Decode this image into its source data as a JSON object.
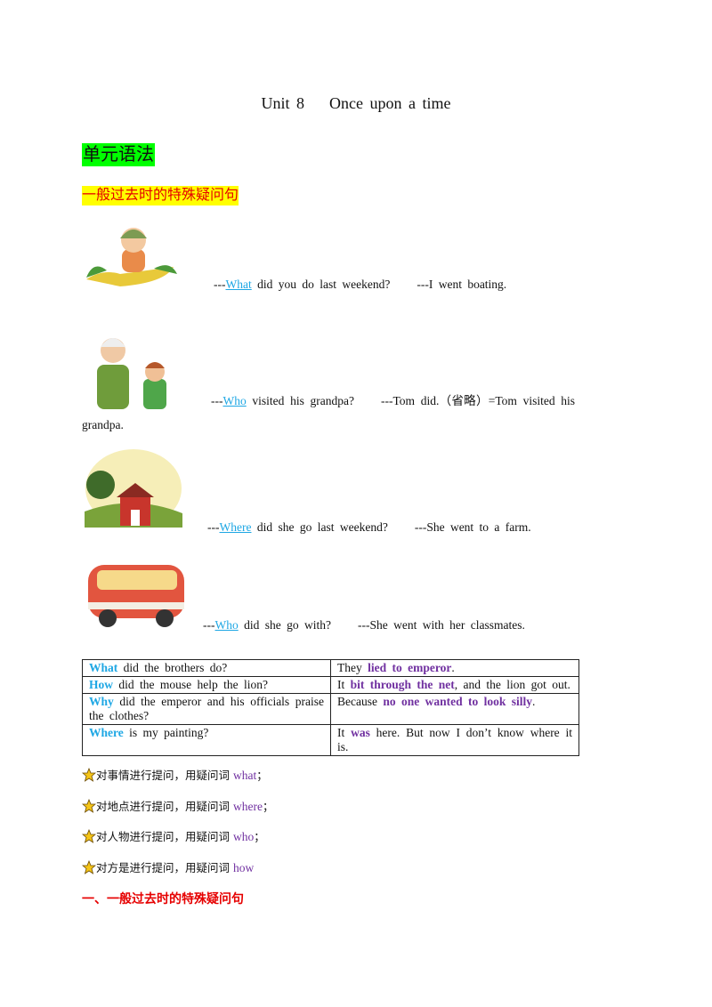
{
  "title": {
    "unit": "Unit 8",
    "name": "Once upon a time"
  },
  "section": "单元语法",
  "subsection": "一般过去时的特殊疑问句",
  "dialogues": [
    {
      "prefix": "---",
      "wh": "What",
      "question": "did you do last weekend?",
      "answer": "---I went boating."
    },
    {
      "prefix": "---",
      "wh": "Who",
      "question": "visited his grandpa?",
      "answer": "---Tom did.（省略）=Tom visited his grandpa."
    },
    {
      "prefix": "---",
      "wh": "Where",
      "question": "did she go last weekend?",
      "answer": "---She went to a farm."
    },
    {
      "prefix": "---",
      "wh": "Who",
      "question": "did she go with?",
      "answer": "---She went with her classmates."
    }
  ],
  "table": {
    "rows": [
      [
        [
          {
            "text": "What",
            "color": "#1ea7e4"
          },
          {
            "text": " did the brothers do?"
          }
        ],
        [
          {
            "text": "They "
          },
          {
            "text": "lied to emperor",
            "color": "#7030a0"
          },
          {
            "text": "."
          }
        ]
      ],
      [
        [
          {
            "text": "How",
            "color": "#1ea7e4"
          },
          {
            "text": " did the mouse help the lion?"
          }
        ],
        [
          {
            "text": "It "
          },
          {
            "text": "bit through the net",
            "color": "#7030a0"
          },
          {
            "text": ", and the lion got out."
          }
        ]
      ],
      [
        [
          {
            "text": "Why",
            "color": "#1ea7e4"
          },
          {
            "text": " did the emperor and his officials praise the clothes?"
          }
        ],
        [
          {
            "text": "Because "
          },
          {
            "text": "no one wanted to look silly",
            "color": "#7030a0"
          },
          {
            "text": "."
          }
        ]
      ],
      [
        [
          {
            "text": "Where",
            "color": "#1ea7e4"
          },
          {
            "text": " is my painting?"
          }
        ],
        [
          {
            "text": "It "
          },
          {
            "text": "was",
            "color": "#7030a0"
          },
          {
            "text": " here. But now I don’t know where it is."
          }
        ]
      ]
    ]
  },
  "notes": [
    {
      "text": "对事情进行提问，用疑问词 ",
      "word": "what",
      "punct": "；"
    },
    {
      "text": "对地点进行提问，用疑问词 ",
      "word": "where",
      "punct": "；"
    },
    {
      "text": "对人物进行提问，用疑问词 ",
      "word": "who",
      "punct": "；"
    },
    {
      "text": "对方是进行提问，用疑问词 ",
      "word": "how"
    }
  ],
  "heading": "一、一般过去时的特殊疑问句"
}
